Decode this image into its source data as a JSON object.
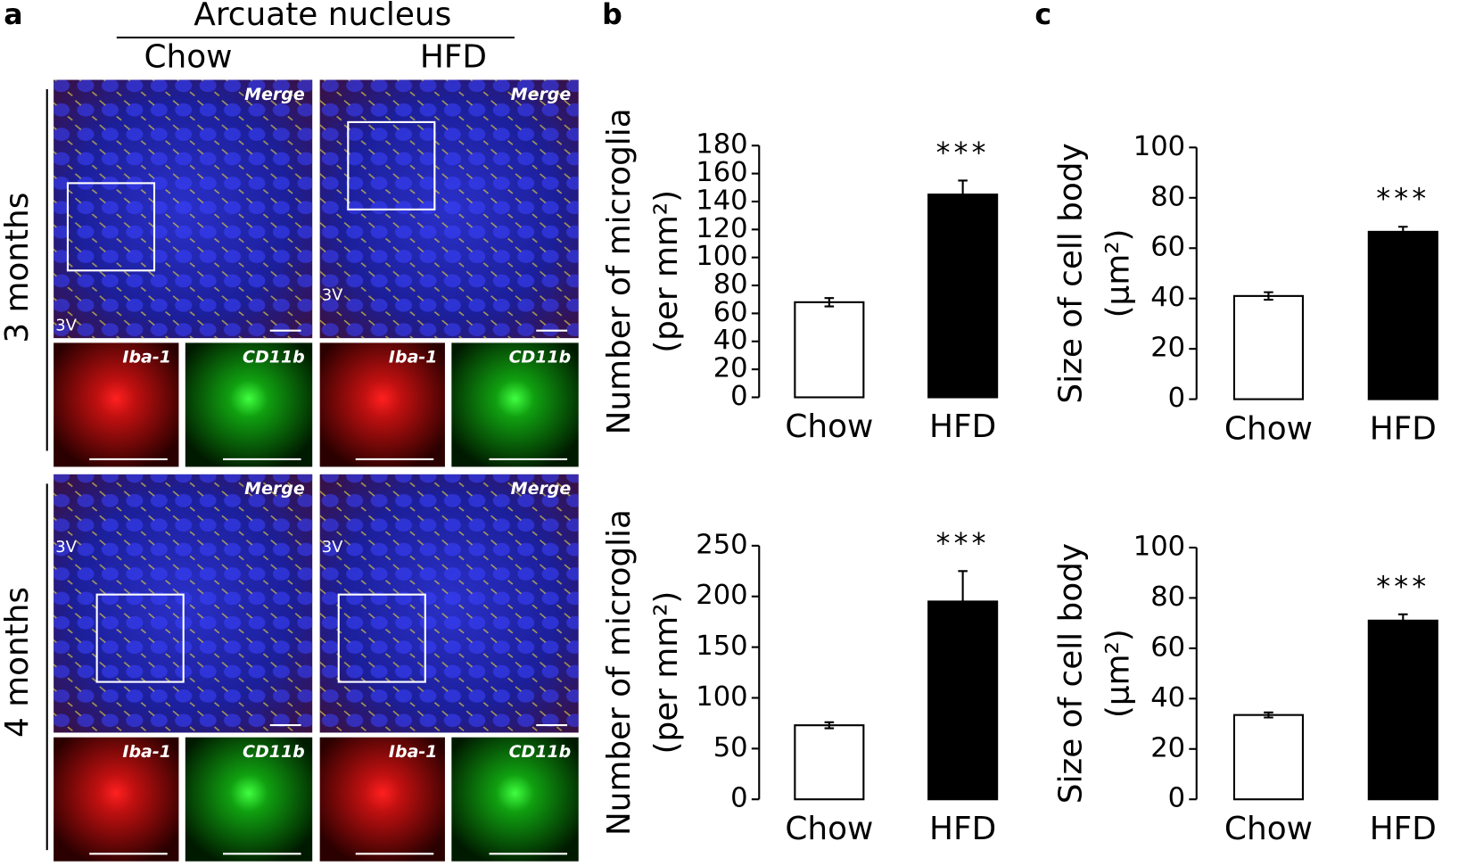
{
  "panel_a": {
    "label": "a",
    "title": "Arcuate nucleus",
    "columns": [
      "Chow",
      "HFD"
    ],
    "rows": [
      "3 months",
      "4 months"
    ],
    "merge_label": "Merge",
    "iba_label": "Iba-1",
    "cd_label": "CD11b",
    "ventricle_label": "3V"
  },
  "panel_labels": [
    "b",
    "c"
  ],
  "chart_data": [
    {
      "type": "bar",
      "ylabel": "Number of microglia",
      "ylabel_unit": "(per mm²)",
      "categories": [
        "Chow",
        "HFD"
      ],
      "values": [
        68,
        145
      ],
      "errors": [
        3,
        10
      ],
      "colors": [
        "#ffffff",
        "#000000"
      ],
      "annotation": {
        "category": "HFD",
        "text": "***"
      },
      "ylim": [
        0,
        180
      ],
      "yticks": [
        0,
        20,
        40,
        60,
        80,
        100,
        120,
        140,
        160,
        180
      ]
    },
    {
      "type": "bar",
      "ylabel": "Size of  cell body",
      "ylabel_unit": "(μm²)",
      "categories": [
        "Chow",
        "HFD"
      ],
      "values": [
        41,
        66.5
      ],
      "errors": [
        1.5,
        2
      ],
      "colors": [
        "#ffffff",
        "#000000"
      ],
      "annotation": {
        "category": "HFD",
        "text": "***"
      },
      "ylim": [
        0,
        100
      ],
      "yticks": [
        0,
        20,
        40,
        60,
        80,
        100
      ]
    },
    {
      "type": "bar",
      "ylabel": "Number of microglia",
      "ylabel_unit": "(per mm²)",
      "categories": [
        "Chow",
        "HFD"
      ],
      "values": [
        73,
        195
      ],
      "errors": [
        3,
        30
      ],
      "colors": [
        "#ffffff",
        "#000000"
      ],
      "annotation": {
        "category": "HFD",
        "text": "***"
      },
      "ylim": [
        0,
        250
      ],
      "yticks": [
        0,
        50,
        100,
        150,
        200,
        250
      ]
    },
    {
      "type": "bar",
      "ylabel": "Size of  cell body",
      "ylabel_unit": "(μm²)",
      "categories": [
        "Chow",
        "HFD"
      ],
      "values": [
        33.5,
        71
      ],
      "errors": [
        1,
        2.5
      ],
      "colors": [
        "#ffffff",
        "#000000"
      ],
      "annotation": {
        "category": "HFD",
        "text": "***"
      },
      "ylim": [
        0,
        100
      ],
      "yticks": [
        0,
        20,
        40,
        60,
        80,
        100
      ]
    }
  ]
}
